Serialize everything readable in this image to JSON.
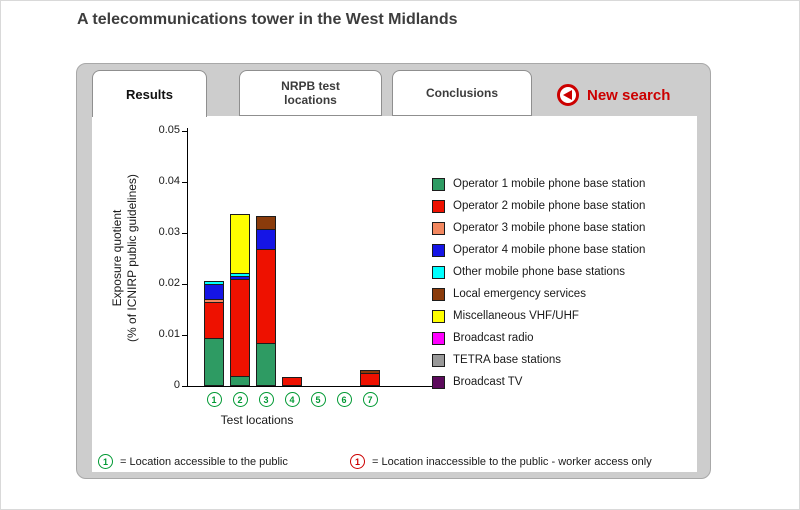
{
  "page": {
    "title": "A telecommunications tower in the West Midlands"
  },
  "tabs": [
    {
      "label": "Results",
      "active": true
    },
    {
      "label": "NRPB test locations",
      "active": false
    },
    {
      "label": "Conclusions",
      "active": false
    }
  ],
  "new_search": {
    "label": "New search",
    "color": "#cc0000"
  },
  "chart_data": {
    "type": "bar",
    "stacked": true,
    "title": "",
    "xlabel": "Test locations",
    "ylabel": "Exposure quotient (% of ICNIRP public guidelines)",
    "ylabel_line1": "Exposure quotient",
    "ylabel_line2": "(% of ICNIRP public guidelines)",
    "ylim": [
      0,
      0.05
    ],
    "yticks": [
      0,
      0.01,
      0.02,
      0.03,
      0.04,
      0.05
    ],
    "ytick_labels": [
      "0",
      "0.01",
      "0.02",
      "0.03",
      "0.04",
      "0.05"
    ],
    "grid": false,
    "legend_position": "right",
    "categories": [
      "1",
      "2",
      "3",
      "4",
      "5",
      "6",
      "7"
    ],
    "series": [
      {
        "name": "Operator 1 mobile phone base station",
        "color": "#2e9b63",
        "values": [
          0.0095,
          0.002,
          0.0085,
          0,
          0,
          0,
          0
        ]
      },
      {
        "name": "Operator 2 mobile phone base station",
        "color": "#ee1100",
        "values": [
          0.007,
          0.019,
          0.0185,
          0.0018,
          0,
          0,
          0.0025
        ]
      },
      {
        "name": "Operator 3 mobile phone base station",
        "color": "#f2875f",
        "values": [
          0.0005,
          0,
          0,
          0,
          0,
          0,
          0
        ]
      },
      {
        "name": "Operator 4 mobile phone base station",
        "color": "#1515e6",
        "values": [
          0.003,
          0.0005,
          0.004,
          0,
          0,
          0,
          0
        ]
      },
      {
        "name": "Other mobile phone base stations",
        "color": "#00ffff",
        "values": [
          0.0005,
          0.0005,
          0,
          0,
          0,
          0,
          0
        ]
      },
      {
        "name": "Local emergency services",
        "color": "#8a3b0b",
        "values": [
          0,
          0,
          0.0025,
          0,
          0,
          0,
          0.0005
        ]
      },
      {
        "name": "Miscellaneous VHF/UHF",
        "color": "#ffff00",
        "values": [
          0,
          0.0115,
          0,
          0,
          0,
          0,
          0
        ]
      },
      {
        "name": "Broadcast radio",
        "color": "#ff00ff",
        "values": [
          0,
          0,
          0,
          0,
          0,
          0,
          0
        ]
      },
      {
        "name": "TETRA base stations",
        "color": "#999999",
        "values": [
          0,
          0,
          0,
          0,
          0,
          0,
          0
        ]
      },
      {
        "name": "Broadcast TV",
        "color": "#5c0a5c",
        "values": [
          0,
          0,
          0,
          0,
          0,
          0,
          0
        ]
      }
    ]
  },
  "footnotes": {
    "public": {
      "symbol": "1",
      "text": "= Location accessible to the public",
      "color": "#009933"
    },
    "worker": {
      "symbol": "1",
      "text": "= Location inaccessible to the public - worker access only",
      "color": "#cc0000"
    }
  }
}
